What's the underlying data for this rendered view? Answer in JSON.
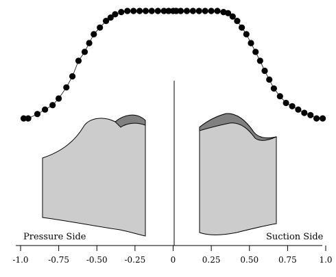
{
  "chart_data": {
    "type": "scatter",
    "title": "",
    "xlabel": "",
    "ylabel": "",
    "xlim": [
      -1.0,
      1.0
    ],
    "ylim": [
      0,
      1
    ],
    "grid": false,
    "x_tick_labels": [
      "-1.0",
      "-0.75",
      "-0.50",
      "-0.25",
      "0",
      "0.25",
      "0.50",
      "0.75",
      "1.0"
    ],
    "x_ticks": [
      -1.0,
      -0.75,
      -0.5,
      -0.25,
      0,
      0.25,
      0.5,
      0.75,
      1.0
    ],
    "annotations": {
      "left": "Pressure Side",
      "right": "Suction Side"
    },
    "series": [
      {
        "marker": "filled-circle",
        "line": "thin-solid",
        "color": "#000000",
        "points": [
          [
            -0.98,
            0.03
          ],
          [
            -0.95,
            0.03
          ],
          [
            -0.89,
            0.07
          ],
          [
            -0.84,
            0.11
          ],
          [
            -0.79,
            0.15
          ],
          [
            -0.75,
            0.21
          ],
          [
            -0.7,
            0.31
          ],
          [
            -0.66,
            0.41
          ],
          [
            -0.62,
            0.55
          ],
          [
            -0.58,
            0.63
          ],
          [
            -0.55,
            0.71
          ],
          [
            -0.52,
            0.79
          ],
          [
            -0.48,
            0.85
          ],
          [
            -0.44,
            0.91
          ],
          [
            -0.41,
            0.94
          ],
          [
            -0.38,
            0.97
          ],
          [
            -0.34,
            0.99
          ],
          [
            -0.3,
            1.0
          ],
          [
            -0.26,
            1.0
          ],
          [
            -0.22,
            1.0
          ],
          [
            -0.18,
            1.0
          ],
          [
            -0.14,
            1.0
          ],
          [
            -0.1,
            1.0
          ],
          [
            -0.06,
            1.0
          ],
          [
            -0.03,
            1.0
          ],
          [
            0.0,
            1.0
          ],
          [
            0.02,
            1.0
          ],
          [
            0.05,
            1.0
          ],
          [
            0.09,
            1.0
          ],
          [
            0.13,
            1.0
          ],
          [
            0.17,
            1.0
          ],
          [
            0.21,
            1.0
          ],
          [
            0.25,
            1.0
          ],
          [
            0.29,
            1.0
          ],
          [
            0.33,
            0.99
          ],
          [
            0.36,
            0.98
          ],
          [
            0.39,
            0.95
          ],
          [
            0.42,
            0.91
          ],
          [
            0.45,
            0.85
          ],
          [
            0.48,
            0.79
          ],
          [
            0.51,
            0.71
          ],
          [
            0.54,
            0.63
          ],
          [
            0.57,
            0.55
          ],
          [
            0.6,
            0.46
          ],
          [
            0.63,
            0.38
          ],
          [
            0.66,
            0.3
          ],
          [
            0.7,
            0.23
          ],
          [
            0.74,
            0.17
          ],
          [
            0.78,
            0.14
          ],
          [
            0.82,
            0.11
          ],
          [
            0.86,
            0.08
          ],
          [
            0.9,
            0.06
          ],
          [
            0.94,
            0.03
          ],
          [
            0.98,
            0.03
          ]
        ]
      }
    ],
    "colors": {
      "blade_fill": "#cccccc",
      "blade_tip_fill": "#808080",
      "outline": "#000000"
    }
  }
}
